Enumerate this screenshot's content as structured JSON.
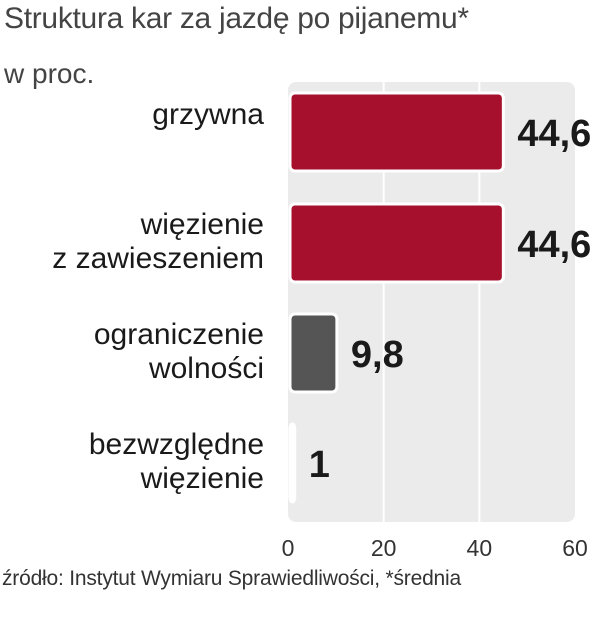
{
  "header": {
    "title": "Struktura kar za jazdę po pijanemu*",
    "subtitle": "w proc."
  },
  "footer": {
    "source": "źródło: Instytut Wymiaru Sprawiedliwości, *średnia"
  },
  "chart_data": {
    "type": "bar",
    "orientation": "horizontal",
    "categories": [
      [
        "grzywna"
      ],
      [
        "więzienie",
        "z zawieszeniem"
      ],
      [
        "ograniczenie",
        "wolności"
      ],
      [
        "bezwzględne",
        "więzienie"
      ]
    ],
    "values": [
      44.6,
      44.6,
      9.8,
      1
    ],
    "value_labels": [
      "44,6",
      "44,6",
      "9,8",
      "1"
    ],
    "bar_colors": [
      "#a6102c",
      "#a6102c",
      "#555555",
      "#ffffff"
    ],
    "xlim": [
      0,
      60
    ],
    "xticks": [
      0,
      20,
      40,
      60
    ],
    "grid": true,
    "legend": "none"
  }
}
